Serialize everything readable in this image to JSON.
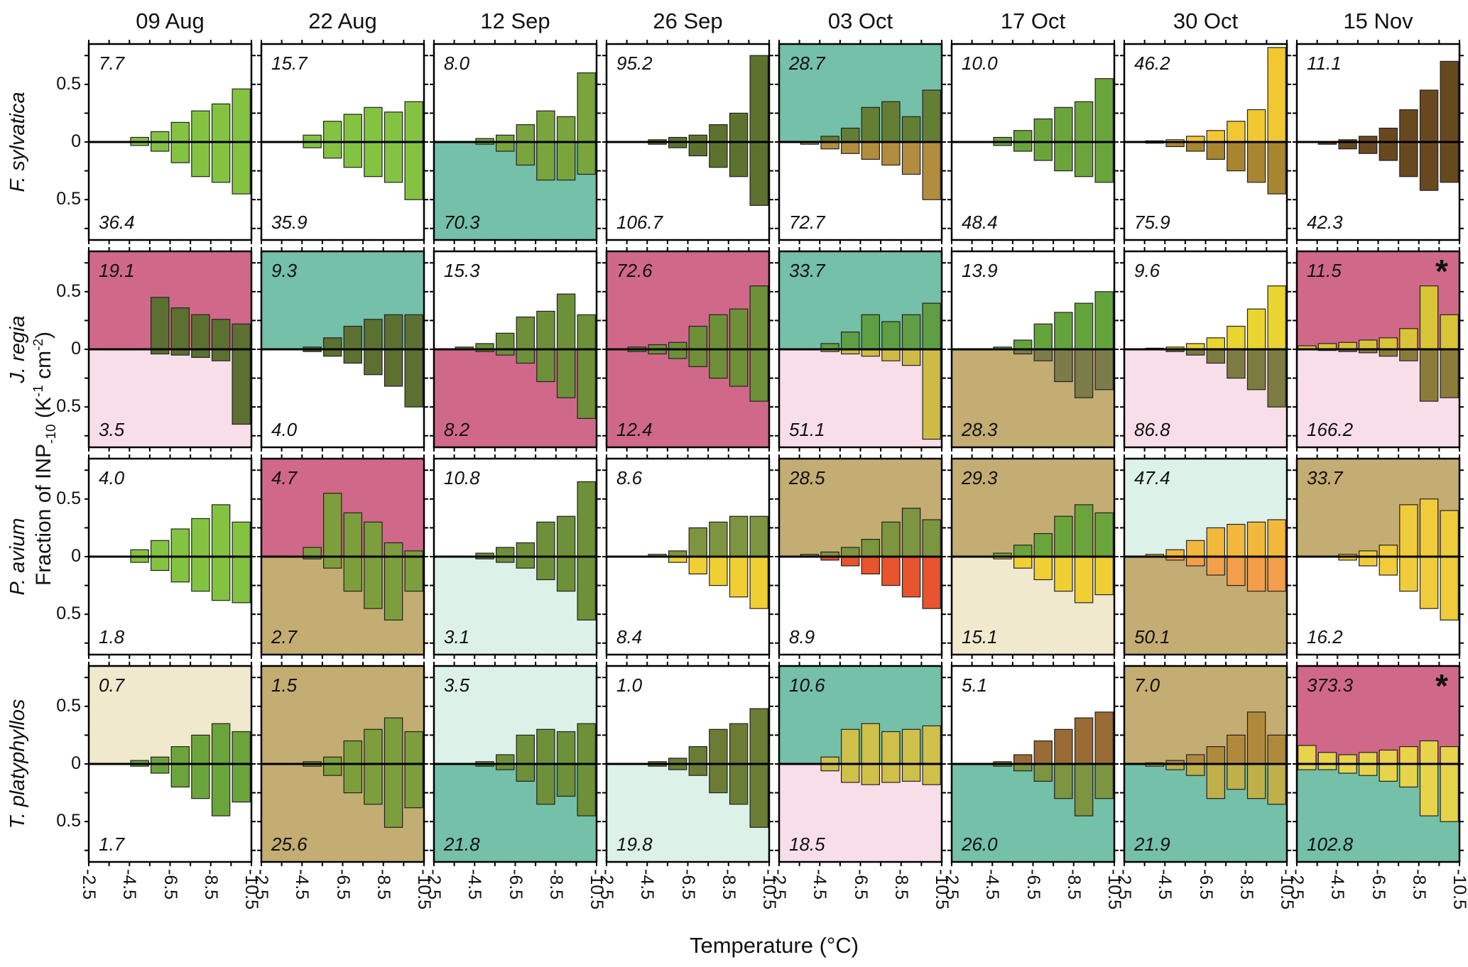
{
  "axes": {
    "xlabel": "Temperature (°C)",
    "ylabel_main": "Fraction of INP",
    "ylabel_sub": "-10",
    "ylabel_mid": " (K",
    "ylabel_sup1": "-1",
    "ylabel_mid2": " cm",
    "ylabel_sup2": "-2",
    "ylabel_end": ")"
  },
  "chart_data": {
    "type": "bar",
    "variant": "mirrored_histogram_small_multiples",
    "xlabel": "Temperature (°C)",
    "ylabel": "Fraction of INP-10 (K-1 cm-2)",
    "col_headers": [
      "09 Aug",
      "22 Aug",
      "12 Sep",
      "26 Sep",
      "03 Oct",
      "17 Oct",
      "30 Oct",
      "15 Nov"
    ],
    "row_headers": [
      "F. sylvatica",
      "J. regia",
      "P. avium",
      "T. platyphyllos"
    ],
    "x_tick_labels": [
      "-2.5",
      "-4.5",
      "-6.5",
      "-8.5",
      "-10.5"
    ],
    "y_tick_labels": [
      "0.5",
      "0",
      "0.5"
    ],
    "bin_centers": [
      -3,
      -4,
      -5,
      -6,
      -7,
      -8,
      -9,
      -10
    ],
    "ylim": 0.85,
    "grid": false,
    "bg_colors": {
      "white": "#ffffff",
      "magenta": "#d0688a",
      "pink": "#f8dee8",
      "teal": "#74c0a8",
      "mint": "#dcf2e8",
      "tan": "#c4ad72",
      "cream": "#f1e9ce"
    },
    "panels": [
      {
        "row": 0,
        "col": 0,
        "top_value": "7.7",
        "bottom_value": "36.4",
        "top_bg": "white",
        "bottom_bg": "white",
        "asterisk": false,
        "up_color": "#84c341",
        "down_color": "#84c341",
        "up": [
          0,
          0,
          0.04,
          0.09,
          0.17,
          0.27,
          0.33,
          0.46
        ],
        "down": [
          0,
          0,
          0.03,
          0.08,
          0.18,
          0.3,
          0.35,
          0.45
        ]
      },
      {
        "row": 0,
        "col": 1,
        "top_value": "15.7",
        "bottom_value": "35.9",
        "top_bg": "white",
        "bottom_bg": "white",
        "asterisk": false,
        "up_color": "#84c341",
        "down_color": "#84c341",
        "up": [
          0,
          0,
          0.06,
          0.18,
          0.24,
          0.3,
          0.26,
          0.35
        ],
        "down": [
          0,
          0,
          0.05,
          0.14,
          0.22,
          0.3,
          0.35,
          0.5
        ]
      },
      {
        "row": 0,
        "col": 2,
        "top_value": "8.0",
        "bottom_value": "70.3",
        "top_bg": "white",
        "bottom_bg": "teal",
        "asterisk": false,
        "up_color": "#79a53c",
        "down_color": "#79a53c",
        "up": [
          0,
          0,
          0.03,
          0.06,
          0.15,
          0.27,
          0.22,
          0.6
        ],
        "down": [
          0,
          0,
          0.02,
          0.08,
          0.2,
          0.33,
          0.33,
          0.28
        ]
      },
      {
        "row": 0,
        "col": 3,
        "top_value": "95.2",
        "bottom_value": "106.7",
        "top_bg": "white",
        "bottom_bg": "white",
        "asterisk": false,
        "up_color": "#5e7230",
        "down_color": "#5e7230",
        "up": [
          0,
          0,
          0.02,
          0.04,
          0.06,
          0.15,
          0.25,
          0.75
        ],
        "down": [
          0,
          0,
          0.02,
          0.05,
          0.12,
          0.22,
          0.3,
          0.55
        ]
      },
      {
        "row": 0,
        "col": 4,
        "top_value": "28.7",
        "bottom_value": "72.7",
        "top_bg": "teal",
        "bottom_bg": "white",
        "asterisk": false,
        "up_color": "#647e34",
        "down_color": "#b38d3e",
        "up": [
          0,
          0,
          0.05,
          0.12,
          0.3,
          0.35,
          0.22,
          0.45
        ],
        "down": [
          0,
          0.02,
          0.06,
          0.1,
          0.15,
          0.2,
          0.28,
          0.5
        ]
      },
      {
        "row": 0,
        "col": 5,
        "top_value": "10.0",
        "bottom_value": "48.4",
        "top_bg": "white",
        "bottom_bg": "white",
        "asterisk": false,
        "up_color": "#6ca43c",
        "down_color": "#6ca43c",
        "up": [
          0,
          0,
          0.04,
          0.1,
          0.2,
          0.3,
          0.35,
          0.55
        ],
        "down": [
          0,
          0,
          0.03,
          0.08,
          0.16,
          0.25,
          0.3,
          0.35
        ]
      },
      {
        "row": 0,
        "col": 6,
        "top_value": "46.2",
        "bottom_value": "75.9",
        "top_bg": "white",
        "bottom_bg": "white",
        "asterisk": false,
        "up_color": "#f1c832",
        "down_color": "#a8852f",
        "up": [
          0,
          0.01,
          0.02,
          0.05,
          0.1,
          0.18,
          0.28,
          0.82
        ],
        "down": [
          0,
          0.01,
          0.04,
          0.08,
          0.15,
          0.25,
          0.35,
          0.45
        ]
      },
      {
        "row": 0,
        "col": 7,
        "top_value": "11.1",
        "bottom_value": "42.3",
        "top_bg": "white",
        "bottom_bg": "white",
        "asterisk": false,
        "up_color": "#68491f",
        "down_color": "#68491f",
        "up": [
          0,
          0,
          0.02,
          0.05,
          0.12,
          0.28,
          0.45,
          0.7
        ],
        "down": [
          0,
          0.02,
          0.06,
          0.1,
          0.16,
          0.3,
          0.42,
          0.35
        ]
      },
      {
        "row": 1,
        "col": 0,
        "top_value": "19.1",
        "bottom_value": "3.5",
        "top_bg": "magenta",
        "bottom_bg": "pink",
        "asterisk": false,
        "up_color": "#5c7032",
        "down_color": "#5c7032",
        "up": [
          0,
          0,
          0,
          0.45,
          0.36,
          0.3,
          0.26,
          0.22
        ],
        "down": [
          0,
          0,
          0,
          0.04,
          0.05,
          0.07,
          0.1,
          0.65
        ]
      },
      {
        "row": 1,
        "col": 1,
        "top_value": "9.3",
        "bottom_value": "4.0",
        "top_bg": "teal",
        "bottom_bg": "white",
        "asterisk": false,
        "up_color": "#5c7032",
        "down_color": "#5c7032",
        "up": [
          0,
          0,
          0.02,
          0.1,
          0.2,
          0.26,
          0.3,
          0.3
        ],
        "down": [
          0,
          0,
          0.02,
          0.06,
          0.12,
          0.22,
          0.32,
          0.5
        ]
      },
      {
        "row": 1,
        "col": 2,
        "top_value": "15.3",
        "bottom_value": "8.2",
        "top_bg": "white",
        "bottom_bg": "magenta",
        "asterisk": false,
        "up_color": "#6e9038",
        "down_color": "#6e9038",
        "up": [
          0,
          0.02,
          0.05,
          0.14,
          0.28,
          0.33,
          0.48,
          0.3
        ],
        "down": [
          0,
          0,
          0.02,
          0.05,
          0.12,
          0.28,
          0.42,
          0.6
        ]
      },
      {
        "row": 1,
        "col": 3,
        "top_value": "72.6",
        "bottom_value": "12.4",
        "top_bg": "magenta",
        "bottom_bg": "magenta",
        "asterisk": false,
        "up_color": "#6e9038",
        "down_color": "#6e9038",
        "up": [
          0,
          0.02,
          0.04,
          0.06,
          0.2,
          0.3,
          0.35,
          0.55
        ],
        "down": [
          0,
          0.02,
          0.04,
          0.08,
          0.15,
          0.25,
          0.32,
          0.45
        ]
      },
      {
        "row": 1,
        "col": 4,
        "top_value": "33.7",
        "bottom_value": "51.1",
        "top_bg": "teal",
        "bottom_bg": "pink",
        "asterisk": false,
        "up_color": "#5f9e42",
        "down_color": "#cdbb45",
        "up": [
          0,
          0,
          0.05,
          0.15,
          0.3,
          0.24,
          0.3,
          0.4
        ],
        "down": [
          0,
          0,
          0.02,
          0.04,
          0.06,
          0.1,
          0.14,
          0.78
        ]
      },
      {
        "row": 1,
        "col": 5,
        "top_value": "13.9",
        "bottom_value": "28.3",
        "top_bg": "white",
        "bottom_bg": "tan",
        "asterisk": false,
        "up_color": "#64a33c",
        "down_color": "#7c7c4a",
        "up": [
          0,
          0,
          0.02,
          0.08,
          0.22,
          0.32,
          0.4,
          0.5
        ],
        "down": [
          0,
          0,
          0,
          0.04,
          0.1,
          0.28,
          0.42,
          0.35
        ]
      },
      {
        "row": 1,
        "col": 6,
        "top_value": "9.6",
        "bottom_value": "86.8",
        "top_bg": "white",
        "bottom_bg": "pink",
        "asterisk": false,
        "up_color": "#ead42f",
        "down_color": "#7c7c42",
        "up": [
          0,
          0.01,
          0.02,
          0.05,
          0.1,
          0.2,
          0.35,
          0.55
        ],
        "down": [
          0,
          0,
          0.02,
          0.05,
          0.12,
          0.25,
          0.35,
          0.5
        ]
      },
      {
        "row": 1,
        "col": 7,
        "top_value": "11.5",
        "bottom_value": "166.2",
        "top_bg": "magenta",
        "bottom_bg": "pink",
        "asterisk": true,
        "up_color": "#d9c438",
        "down_color": "#8c7c3c",
        "up": [
          0.03,
          0.05,
          0.06,
          0.08,
          0.1,
          0.18,
          0.55,
          0.3
        ],
        "down": [
          0,
          0.01,
          0.02,
          0.03,
          0.06,
          0.1,
          0.45,
          0.42
        ]
      },
      {
        "row": 2,
        "col": 0,
        "top_value": "4.0",
        "bottom_value": "1.8",
        "top_bg": "white",
        "bottom_bg": "white",
        "asterisk": false,
        "up_color": "#84c341",
        "down_color": "#84c341",
        "up": [
          0,
          0,
          0.06,
          0.14,
          0.24,
          0.33,
          0.45,
          0.3
        ],
        "down": [
          0,
          0,
          0.05,
          0.12,
          0.22,
          0.3,
          0.38,
          0.4
        ]
      },
      {
        "row": 2,
        "col": 1,
        "top_value": "4.7",
        "bottom_value": "2.7",
        "top_bg": "magenta",
        "bottom_bg": "tan",
        "asterisk": false,
        "up_color": "#7d9e3c",
        "down_color": "#7d9e3c",
        "up": [
          0,
          0,
          0.08,
          0.55,
          0.38,
          0.3,
          0.12,
          0.05
        ],
        "down": [
          0,
          0,
          0.02,
          0.1,
          0.3,
          0.45,
          0.55,
          0.3
        ]
      },
      {
        "row": 2,
        "col": 2,
        "top_value": "10.8",
        "bottom_value": "3.1",
        "top_bg": "white",
        "bottom_bg": "mint",
        "asterisk": false,
        "up_color": "#6e9038",
        "down_color": "#6e9038",
        "up": [
          0,
          0,
          0.03,
          0.08,
          0.12,
          0.3,
          0.35,
          0.65
        ],
        "down": [
          0,
          0,
          0.02,
          0.05,
          0.1,
          0.2,
          0.3,
          0.55
        ]
      },
      {
        "row": 2,
        "col": 3,
        "top_value": "8.6",
        "bottom_value": "8.4",
        "top_bg": "white",
        "bottom_bg": "white",
        "asterisk": false,
        "up_color": "#7d9440",
        "down_color": "#f0cf35",
        "up": [
          0,
          0,
          0.02,
          0.05,
          0.25,
          0.3,
          0.35,
          0.35
        ],
        "down": [
          0,
          0,
          0,
          0.05,
          0.15,
          0.25,
          0.35,
          0.45
        ]
      },
      {
        "row": 2,
        "col": 4,
        "top_value": "28.5",
        "bottom_value": "8.9",
        "top_bg": "tan",
        "bottom_bg": "white",
        "asterisk": false,
        "up_color": "#7d9440",
        "down_color": "#e8542e",
        "up": [
          0,
          0.02,
          0.04,
          0.08,
          0.15,
          0.3,
          0.42,
          0.32
        ],
        "down": [
          0,
          0,
          0.03,
          0.08,
          0.15,
          0.25,
          0.35,
          0.45
        ]
      },
      {
        "row": 2,
        "col": 5,
        "top_value": "29.3",
        "bottom_value": "15.1",
        "top_bg": "tan",
        "bottom_bg": "cream",
        "asterisk": false,
        "up_color": "#6ca43c",
        "down_color": "#f0cf35",
        "up": [
          0,
          0,
          0.03,
          0.1,
          0.2,
          0.35,
          0.45,
          0.38
        ],
        "down": [
          0,
          0,
          0.02,
          0.1,
          0.2,
          0.3,
          0.4,
          0.33
        ]
      },
      {
        "row": 2,
        "col": 6,
        "top_value": "47.4",
        "bottom_value": "50.1",
        "top_bg": "mint",
        "bottom_bg": "tan",
        "asterisk": false,
        "up_color": "#f2b83c",
        "down_color": "#f29e4a",
        "up": [
          0,
          0.02,
          0.06,
          0.14,
          0.25,
          0.28,
          0.3,
          0.32
        ],
        "down": [
          0,
          0,
          0.03,
          0.08,
          0.16,
          0.25,
          0.3,
          0.3
        ]
      },
      {
        "row": 2,
        "col": 7,
        "top_value": "33.7",
        "bottom_value": "16.2",
        "top_bg": "tan",
        "bottom_bg": "white",
        "asterisk": false,
        "up_color": "#f0cc3c",
        "down_color": "#f0cc3c",
        "up": [
          0,
          0,
          0.02,
          0.05,
          0.1,
          0.45,
          0.5,
          0.4
        ],
        "down": [
          0,
          0,
          0.03,
          0.08,
          0.16,
          0.3,
          0.45,
          0.55
        ]
      },
      {
        "row": 3,
        "col": 0,
        "top_value": "0.7",
        "bottom_value": "1.7",
        "top_bg": "cream",
        "bottom_bg": "white",
        "asterisk": false,
        "up_color": "#6ca43c",
        "down_color": "#6ca43c",
        "up": [
          0,
          0,
          0.03,
          0.06,
          0.15,
          0.25,
          0.35,
          0.28
        ],
        "down": [
          0,
          0,
          0.02,
          0.08,
          0.2,
          0.3,
          0.45,
          0.33
        ]
      },
      {
        "row": 3,
        "col": 1,
        "top_value": "1.5",
        "bottom_value": "25.6",
        "top_bg": "tan",
        "bottom_bg": "tan",
        "asterisk": false,
        "up_color": "#7d9e3c",
        "down_color": "#7d9e3c",
        "up": [
          0,
          0,
          0.02,
          0.06,
          0.2,
          0.3,
          0.4,
          0.28
        ],
        "down": [
          0,
          0,
          0.02,
          0.1,
          0.25,
          0.35,
          0.55,
          0.38
        ]
      },
      {
        "row": 3,
        "col": 2,
        "top_value": "3.5",
        "bottom_value": "21.8",
        "top_bg": "mint",
        "bottom_bg": "teal",
        "asterisk": false,
        "up_color": "#6e9038",
        "down_color": "#6e9038",
        "up": [
          0,
          0,
          0.02,
          0.08,
          0.25,
          0.3,
          0.28,
          0.35
        ],
        "down": [
          0,
          0,
          0.02,
          0.05,
          0.15,
          0.35,
          0.28,
          0.45
        ]
      },
      {
        "row": 3,
        "col": 3,
        "top_value": "1.0",
        "bottom_value": "19.8",
        "top_bg": "white",
        "bottom_bg": "mint",
        "asterisk": false,
        "up_color": "#6b7c35",
        "down_color": "#6b7c35",
        "up": [
          0,
          0,
          0.02,
          0.05,
          0.15,
          0.3,
          0.35,
          0.48
        ],
        "down": [
          0,
          0,
          0.02,
          0.05,
          0.1,
          0.25,
          0.35,
          0.55
        ]
      },
      {
        "row": 3,
        "col": 4,
        "top_value": "10.6",
        "bottom_value": "18.5",
        "top_bg": "teal",
        "bottom_bg": "pink",
        "asterisk": false,
        "up_color": "#cfc04a",
        "down_color": "#cfc04a",
        "up": [
          0,
          0,
          0.06,
          0.3,
          0.35,
          0.28,
          0.3,
          0.33
        ],
        "down": [
          0,
          0,
          0.06,
          0.16,
          0.18,
          0.16,
          0.15,
          0.18
        ]
      },
      {
        "row": 3,
        "col": 5,
        "top_value": "5.1",
        "bottom_value": "26.0",
        "top_bg": "white",
        "bottom_bg": "teal",
        "asterisk": false,
        "up_color": "#9a6b35",
        "down_color": "#7d9440",
        "up": [
          0,
          0,
          0.02,
          0.08,
          0.2,
          0.3,
          0.4,
          0.45
        ],
        "down": [
          0,
          0,
          0.02,
          0.06,
          0.15,
          0.3,
          0.45,
          0.3
        ]
      },
      {
        "row": 3,
        "col": 6,
        "top_value": "7.0",
        "bottom_value": "21.9",
        "top_bg": "tan",
        "bottom_bg": "teal",
        "asterisk": false,
        "up_color": "#b08a3c",
        "down_color": "#bfb04a",
        "up": [
          0,
          0.01,
          0.03,
          0.08,
          0.15,
          0.25,
          0.45,
          0.25
        ],
        "down": [
          0,
          0.02,
          0.05,
          0.1,
          0.3,
          0.22,
          0.3,
          0.35
        ]
      },
      {
        "row": 3,
        "col": 7,
        "top_value": "373.3",
        "bottom_value": "102.8",
        "top_bg": "magenta",
        "bottom_bg": "teal",
        "asterisk": true,
        "up_color": "#e8d44a",
        "down_color": "#e8d44a",
        "up": [
          0.16,
          0.1,
          0.08,
          0.1,
          0.12,
          0.15,
          0.2,
          0.15
        ],
        "down": [
          0.05,
          0.05,
          0.08,
          0.1,
          0.15,
          0.2,
          0.45,
          0.5
        ]
      }
    ]
  }
}
